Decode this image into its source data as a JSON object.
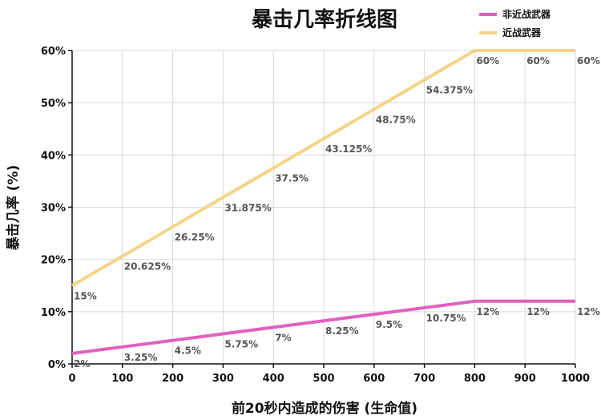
{
  "chart_data": {
    "type": "line",
    "title": "暴击几率折线图",
    "xlabel": "前20秒内造成的伤害 (生命值)",
    "ylabel": "暴击几率 (%)",
    "x": [
      0,
      100,
      200,
      300,
      400,
      500,
      600,
      700,
      800,
      900,
      1000
    ],
    "xlim": [
      0,
      1000
    ],
    "ylim": [
      0,
      60
    ],
    "xticks": [
      "0",
      "100",
      "200",
      "300",
      "400",
      "500",
      "600",
      "700",
      "800",
      "900",
      "1000"
    ],
    "yticks": [
      "0%",
      "10%",
      "20%",
      "30%",
      "40%",
      "50%",
      "60%"
    ],
    "ytick_values": [
      0,
      10,
      20,
      30,
      40,
      50,
      60
    ],
    "grid": true,
    "legend_position": "top-right",
    "series": [
      {
        "name": "非近战武器",
        "color": "#e25fc0",
        "values": [
          2,
          3.25,
          4.5,
          5.75,
          7,
          8.25,
          9.5,
          10.75,
          12,
          12,
          12
        ],
        "labels": [
          "2%",
          "3.25%",
          "4.5%",
          "5.75%",
          "7%",
          "8.25%",
          "9.5%",
          "10.75%",
          "12%",
          "12%",
          "12%"
        ]
      },
      {
        "name": "近战武器",
        "color": "#f5d488",
        "values": [
          15,
          20.625,
          26.25,
          31.875,
          37.5,
          43.125,
          48.75,
          54.375,
          60,
          60,
          60
        ],
        "labels": [
          "15%",
          "20.625%",
          "26.25%",
          "31.875%",
          "37.5%",
          "43.125%",
          "48.75%",
          "54.375%",
          "60%",
          "60%",
          "60%"
        ]
      }
    ]
  }
}
